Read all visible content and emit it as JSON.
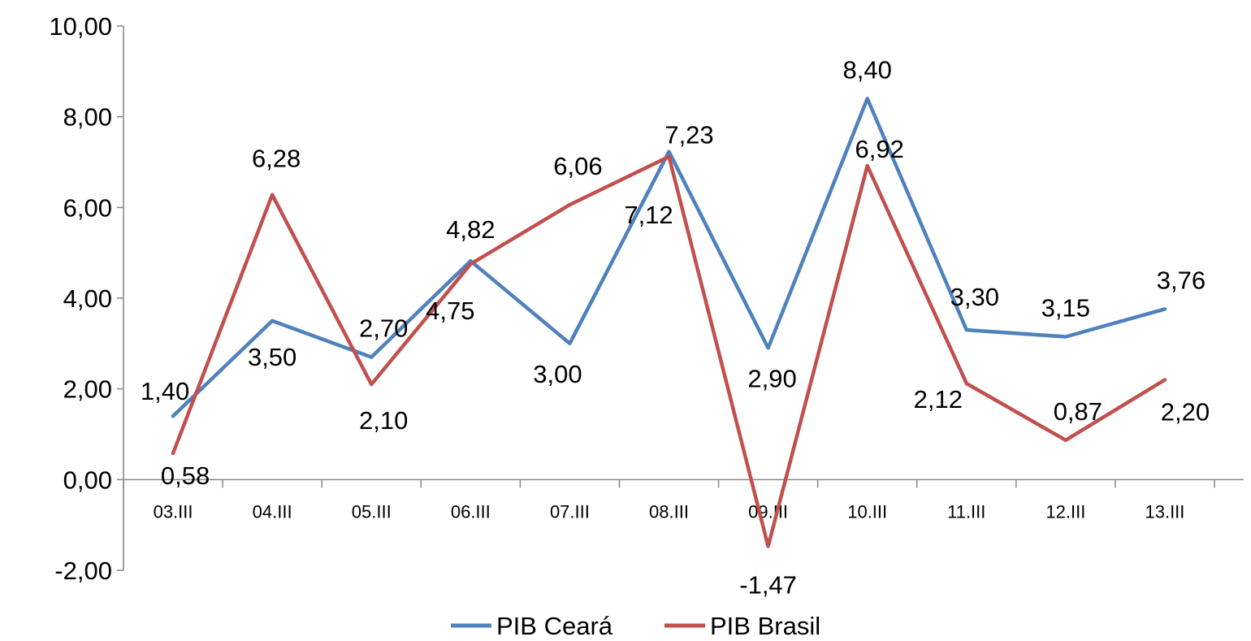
{
  "chart_data": {
    "type": "line",
    "categories": [
      "03.III",
      "04.III",
      "05.III",
      "06.III",
      "07.III",
      "08.III",
      "09.III",
      "10.III",
      "11.III",
      "12.III",
      "13.III"
    ],
    "series": [
      {
        "name": "PIB Ceará",
        "color": "#4F81BD",
        "values": [
          1.4,
          3.5,
          2.7,
          4.82,
          3.0,
          7.23,
          2.9,
          8.4,
          3.3,
          3.15,
          3.76
        ],
        "labels": [
          "1,40",
          "3,50",
          "2,70",
          "4,82",
          "3,00",
          "7,23",
          "2,90",
          "8,40",
          "3,30",
          "3,15",
          "3,76"
        ]
      },
      {
        "name": "PIB Brasil",
        "color": "#C0504D",
        "values": [
          0.58,
          6.28,
          2.1,
          4.75,
          6.06,
          7.12,
          -1.47,
          6.92,
          2.12,
          0.87,
          2.2
        ],
        "labels": [
          "0,58",
          "6,28",
          "2,10",
          "4,75",
          "6,06",
          "7,12",
          "-1,47",
          "6,92",
          "2,12",
          "0,87",
          "2,20"
        ]
      }
    ],
    "yticks": [
      "-2,00",
      "0,00",
      "2,00",
      "4,00",
      "6,00",
      "8,00",
      "10,00"
    ],
    "ylim": [
      -2,
      10
    ],
    "grid": false,
    "legend": "bottom"
  }
}
